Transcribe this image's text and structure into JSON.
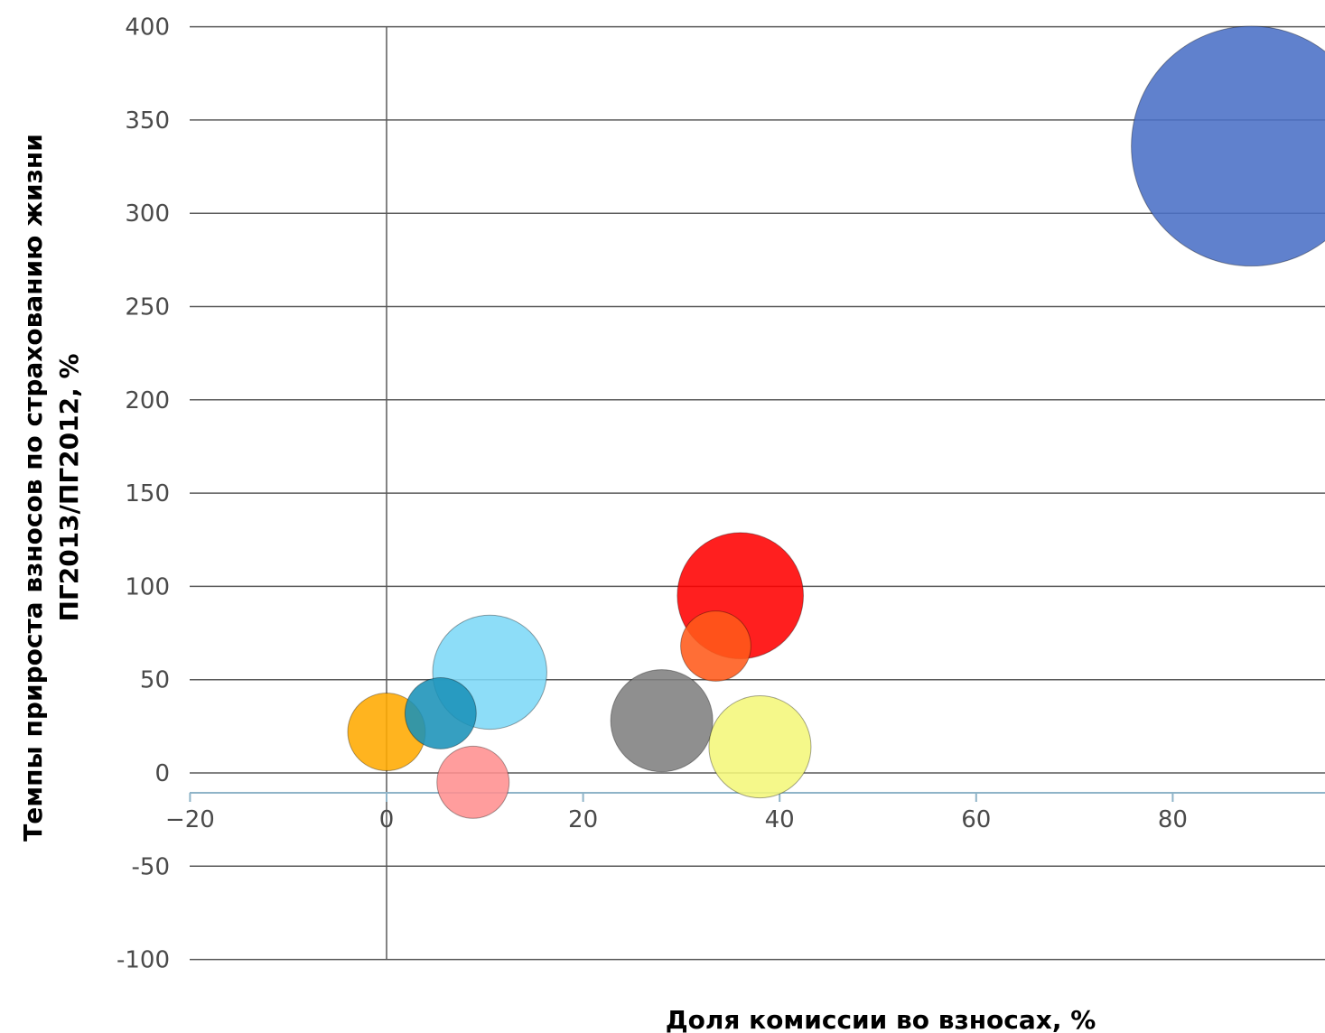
{
  "chart_data": {
    "type": "bubble",
    "xlabel": "Доля комиссии во взносах, %",
    "ylabel_lines": [
      "Темпы прироста взносов по страхованию жизни",
      "ПГ2013/ПГ2012, %"
    ],
    "xlim": [
      -20,
      96
    ],
    "ylim": [
      -100,
      400
    ],
    "x_ticks": [
      -20,
      0,
      20,
      40,
      60,
      80
    ],
    "x_tick_labels": [
      "−20",
      "0",
      "20",
      "40",
      "60",
      "80"
    ],
    "y_ticks": [
      400,
      350,
      300,
      250,
      200,
      150,
      100,
      50,
      0,
      -50,
      -100
    ],
    "y_tick_labels": [
      "400",
      "350",
      "300",
      "250",
      "200",
      "150",
      "100",
      "50",
      "0",
      "-50",
      "-100"
    ],
    "grid": true,
    "points": [
      {
        "x": 88,
        "y": 336,
        "size": 4200,
        "color": "#4a6fc6"
      },
      {
        "x": 10.5,
        "y": 54,
        "size": 950,
        "color": "#7dd8f7"
      },
      {
        "x": 36,
        "y": 95,
        "size": 1160,
        "color": "#ff0000"
      },
      {
        "x": 33.5,
        "y": 68,
        "size": 360,
        "color": "#ff5a1a"
      },
      {
        "x": 28,
        "y": 28,
        "size": 760,
        "color": "#7f7f7f"
      },
      {
        "x": 38,
        "y": 14,
        "size": 760,
        "color": "#f4f77a"
      },
      {
        "x": 0,
        "y": 22,
        "size": 440,
        "color": "#ffaa00"
      },
      {
        "x": 5.5,
        "y": 32,
        "size": 370,
        "color": "#1a92b8"
      },
      {
        "x": 8.8,
        "y": -5,
        "size": 380,
        "color": "#ff8f8f"
      }
    ]
  }
}
